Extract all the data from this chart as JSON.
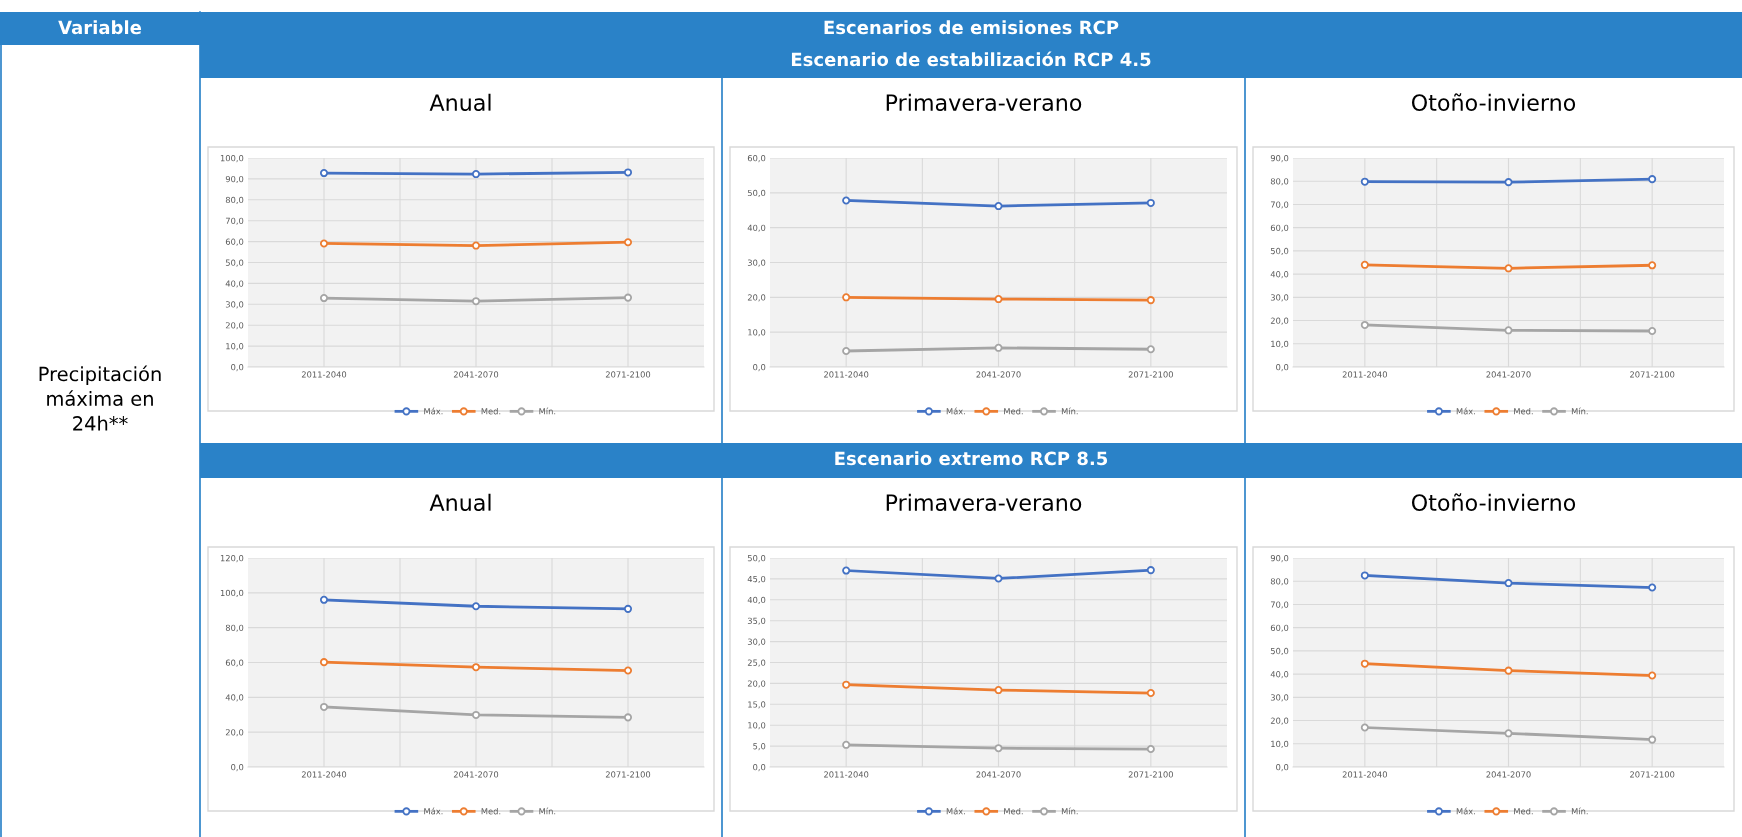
{
  "chart_data": [
    {
      "type": "line",
      "title": "Anual",
      "annotations": [
        "Variable",
        "Escenarios de emisiones RCP",
        "Escenario de estabilización RCP 4.5",
        "Escenario extremo RCP 8.5",
        "Precipitación\nmáxima en\n24h**"
      ],
      "categories": [
        "2011-2040",
        "2041-2070",
        "2071-2100"
      ],
      "grid": true,
      "legend": "bottom",
      "marker": "circle",
      "line_style": "solid",
      "ylim": [
        0,
        100
      ],
      "yticks": [
        {
          "value": 0,
          "label": "0,0"
        },
        {
          "value": 10,
          "label": "10,0"
        },
        {
          "value": 20,
          "label": "20,0"
        },
        {
          "value": 30,
          "label": "30,0"
        },
        {
          "value": 40,
          "label": "40,0"
        },
        {
          "value": 50,
          "label": "50,0"
        },
        {
          "value": 60,
          "label": "60,0"
        },
        {
          "value": 70,
          "label": "70,0"
        },
        {
          "value": 80,
          "label": "80,0"
        },
        {
          "value": 90,
          "label": "90,0"
        },
        {
          "value": 100,
          "label": "100,0"
        }
      ],
      "series": [
        {
          "name": "Máx.",
          "color": "#4472c4",
          "values": [
            92.8,
            92.3,
            93.1
          ]
        },
        {
          "name": "Med.",
          "color": "#ed7d31",
          "values": [
            59.1,
            58.1,
            59.7
          ]
        },
        {
          "name": "Mín.",
          "color": "#a5a5a5",
          "values": [
            33.0,
            31.5,
            33.2
          ]
        }
      ]
    },
    {
      "type": "line",
      "title": "Primavera-verano",
      "categories": [
        "2011-2040",
        "2041-2070",
        "2071-2100"
      ],
      "grid": true,
      "legend": "bottom",
      "marker": "circle",
      "line_style": "solid",
      "ylim": [
        0,
        60
      ],
      "yticks": [
        {
          "value": 0,
          "label": "0,0"
        },
        {
          "value": 10,
          "label": "10,0"
        },
        {
          "value": 20,
          "label": "20,0"
        },
        {
          "value": 30,
          "label": "30,0"
        },
        {
          "value": 40,
          "label": "40,0"
        },
        {
          "value": 50,
          "label": "50,0"
        },
        {
          "value": 60,
          "label": "60,0"
        }
      ],
      "series": [
        {
          "name": "Máx.",
          "color": "#4472c4",
          "values": [
            47.8,
            46.2,
            47.1
          ]
        },
        {
          "name": "Med.",
          "color": "#ed7d31",
          "values": [
            20.0,
            19.5,
            19.2
          ]
        },
        {
          "name": "Mín.",
          "color": "#a5a5a5",
          "values": [
            4.6,
            5.5,
            5.1
          ]
        }
      ]
    },
    {
      "type": "line",
      "title": "Otoño-invierno",
      "categories": [
        "2011-2040",
        "2041-2070",
        "2071-2100"
      ],
      "grid": true,
      "legend": "bottom",
      "marker": "circle",
      "line_style": "solid",
      "ylim": [
        0,
        90
      ],
      "yticks": [
        {
          "value": 0,
          "label": "0,0"
        },
        {
          "value": 10,
          "label": "10,0"
        },
        {
          "value": 20,
          "label": "20,0"
        },
        {
          "value": 30,
          "label": "30,0"
        },
        {
          "value": 40,
          "label": "40,0"
        },
        {
          "value": 50,
          "label": "50,0"
        },
        {
          "value": 60,
          "label": "60,0"
        },
        {
          "value": 70,
          "label": "70,0"
        },
        {
          "value": 80,
          "label": "80,0"
        },
        {
          "value": 90,
          "label": "90,0"
        }
      ],
      "series": [
        {
          "name": "Máx.",
          "color": "#4472c4",
          "values": [
            79.8,
            79.6,
            80.9
          ]
        },
        {
          "name": "Med.",
          "color": "#ed7d31",
          "values": [
            44.0,
            42.5,
            43.8
          ]
        },
        {
          "name": "Mín.",
          "color": "#a5a5a5",
          "values": [
            18.1,
            15.8,
            15.5
          ]
        }
      ]
    },
    {
      "type": "line",
      "title": "Anual",
      "categories": [
        "2011-2040",
        "2041-2070",
        "2071-2100"
      ],
      "grid": true,
      "legend": "bottom",
      "marker": "circle",
      "line_style": "solid",
      "ylim": [
        0,
        120
      ],
      "yticks": [
        {
          "value": 0,
          "label": "0,0"
        },
        {
          "value": 20,
          "label": "20,0"
        },
        {
          "value": 40,
          "label": "40,0"
        },
        {
          "value": 60,
          "label": "60,0"
        },
        {
          "value": 80,
          "label": "80,0"
        },
        {
          "value": 100,
          "label": "100,0"
        },
        {
          "value": 120,
          "label": "120,0"
        }
      ],
      "series": [
        {
          "name": "Máx.",
          "color": "#4472c4",
          "values": [
            96.0,
            92.3,
            90.8
          ]
        },
        {
          "name": "Med.",
          "color": "#ed7d31",
          "values": [
            60.2,
            57.3,
            55.4
          ]
        },
        {
          "name": "Mín.",
          "color": "#a5a5a5",
          "values": [
            34.5,
            29.9,
            28.5
          ]
        }
      ]
    },
    {
      "type": "line",
      "title": "Primavera-verano",
      "categories": [
        "2011-2040",
        "2041-2070",
        "2071-2100"
      ],
      "grid": true,
      "legend": "bottom",
      "marker": "circle",
      "line_style": "solid",
      "ylim": [
        0,
        50
      ],
      "yticks": [
        {
          "value": 0,
          "label": "0,0"
        },
        {
          "value": 5,
          "label": "5,0"
        },
        {
          "value": 10,
          "label": "10,0"
        },
        {
          "value": 15,
          "label": "15,0"
        },
        {
          "value": 20,
          "label": "20,0"
        },
        {
          "value": 25,
          "label": "25,0"
        },
        {
          "value": 30,
          "label": "30,0"
        },
        {
          "value": 35,
          "label": "35,0"
        },
        {
          "value": 40,
          "label": "40,0"
        },
        {
          "value": 45,
          "label": "45,0"
        },
        {
          "value": 50,
          "label": "50,0"
        }
      ],
      "series": [
        {
          "name": "Máx.",
          "color": "#4472c4",
          "values": [
            47.0,
            45.1,
            47.1
          ]
        },
        {
          "name": "Med.",
          "color": "#ed7d31",
          "values": [
            19.7,
            18.4,
            17.7
          ]
        },
        {
          "name": "Mín.",
          "color": "#a5a5a5",
          "values": [
            5.3,
            4.5,
            4.3
          ]
        }
      ]
    },
    {
      "type": "line",
      "title": "Otoño-invierno",
      "categories": [
        "2011-2040",
        "2041-2070",
        "2071-2100"
      ],
      "grid": true,
      "legend": "bottom",
      "marker": "circle",
      "line_style": "solid",
      "ylim": [
        0,
        90
      ],
      "yticks": [
        {
          "value": 0,
          "label": "0,0"
        },
        {
          "value": 10,
          "label": "10,0"
        },
        {
          "value": 20,
          "label": "20,0"
        },
        {
          "value": 30,
          "label": "30,0"
        },
        {
          "value": 40,
          "label": "40,0"
        },
        {
          "value": 50,
          "label": "50,0"
        },
        {
          "value": 60,
          "label": "60,0"
        },
        {
          "value": 70,
          "label": "70,0"
        },
        {
          "value": 80,
          "label": "80,0"
        },
        {
          "value": 90,
          "label": "90,0"
        }
      ],
      "series": [
        {
          "name": "Máx.",
          "color": "#4472c4",
          "values": [
            82.5,
            79.2,
            77.3
          ]
        },
        {
          "name": "Med.",
          "color": "#ed7d31",
          "values": [
            44.5,
            41.5,
            39.4
          ]
        },
        {
          "name": "Mín.",
          "color": "#a5a5a5",
          "values": [
            17.0,
            14.5,
            11.8
          ]
        }
      ]
    }
  ]
}
